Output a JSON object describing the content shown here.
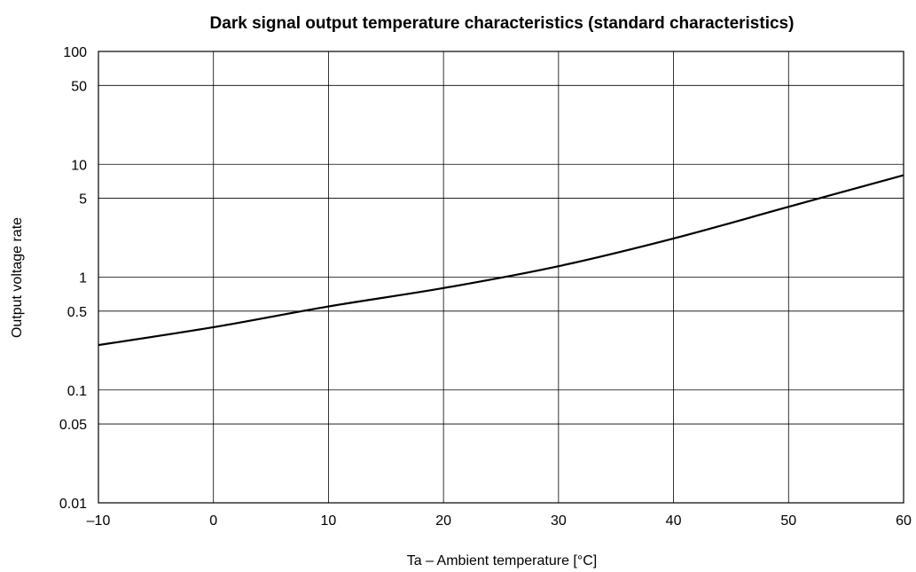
{
  "chart_data": {
    "type": "line",
    "title": "Dark signal output temperature characteristics (standard characteristics)",
    "xlabel": "Ta – Ambient temperature [°C]",
    "ylabel": "Output voltage rate",
    "xlim": [
      -10,
      60
    ],
    "ylim": [
      0.01,
      100
    ],
    "yscale": "log",
    "grid": true,
    "x_ticks": [
      -10,
      0,
      10,
      20,
      30,
      40,
      50,
      60
    ],
    "x_tick_labels": [
      "–10",
      "0",
      "10",
      "20",
      "30",
      "40",
      "50",
      "60"
    ],
    "y_ticks": [
      0.01,
      0.05,
      0.1,
      0.5,
      1,
      5,
      10,
      50,
      100
    ],
    "y_tick_labels": [
      "0.01",
      "0.05",
      "0.1",
      "0.5",
      "1",
      "5",
      "10",
      "50",
      "100"
    ],
    "series": [
      {
        "x": [
          -10,
          0,
          10,
          20,
          30,
          40,
          50,
          60
        ],
        "y": [
          0.25,
          0.36,
          0.55,
          0.8,
          1.25,
          2.2,
          4.2,
          8.0
        ]
      }
    ]
  }
}
